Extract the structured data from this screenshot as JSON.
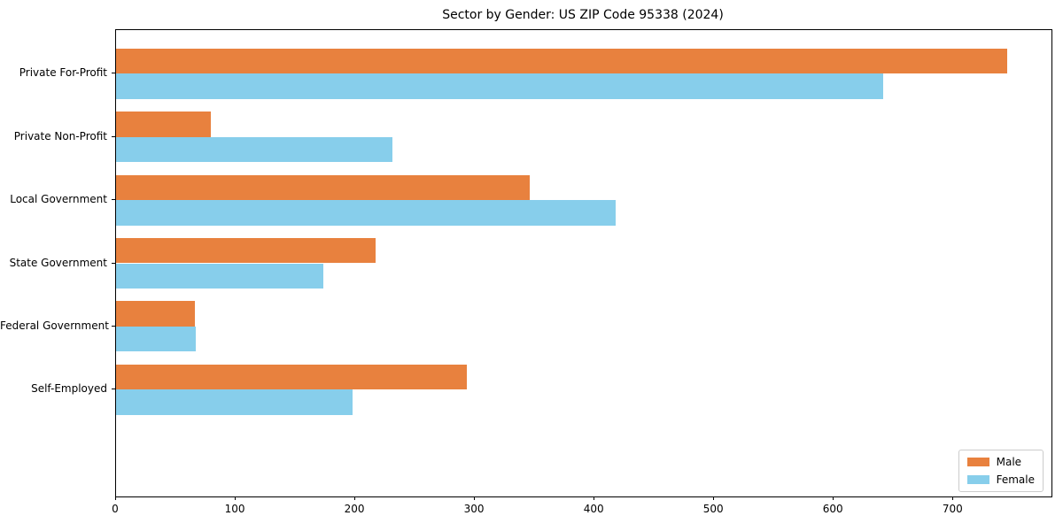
{
  "chart_data": {
    "type": "bar",
    "orientation": "horizontal",
    "title": "Sector by Gender: US ZIP Code 95338 (2024)",
    "categories": [
      "Private For-Profit",
      "Private Non-Profit",
      "Local Government",
      "State Government",
      "Federal Government",
      "Self-Employed"
    ],
    "series": [
      {
        "name": "Male",
        "color": "#E8813E",
        "values": [
          745,
          79,
          346,
          217,
          66,
          293
        ]
      },
      {
        "name": "Female",
        "color": "#87CEEB",
        "values": [
          641,
          231,
          418,
          173,
          67,
          198
        ]
      }
    ],
    "xlabel": "",
    "ylabel": "",
    "xlim": [
      0,
      782
    ],
    "xticks": [
      0,
      100,
      200,
      300,
      400,
      500,
      600,
      700
    ],
    "grid": false,
    "legend_position": "lower right",
    "colors": {
      "spine": "#000000",
      "background": "#ffffff",
      "text": "#000000",
      "legend_border": "#cccccc"
    }
  }
}
